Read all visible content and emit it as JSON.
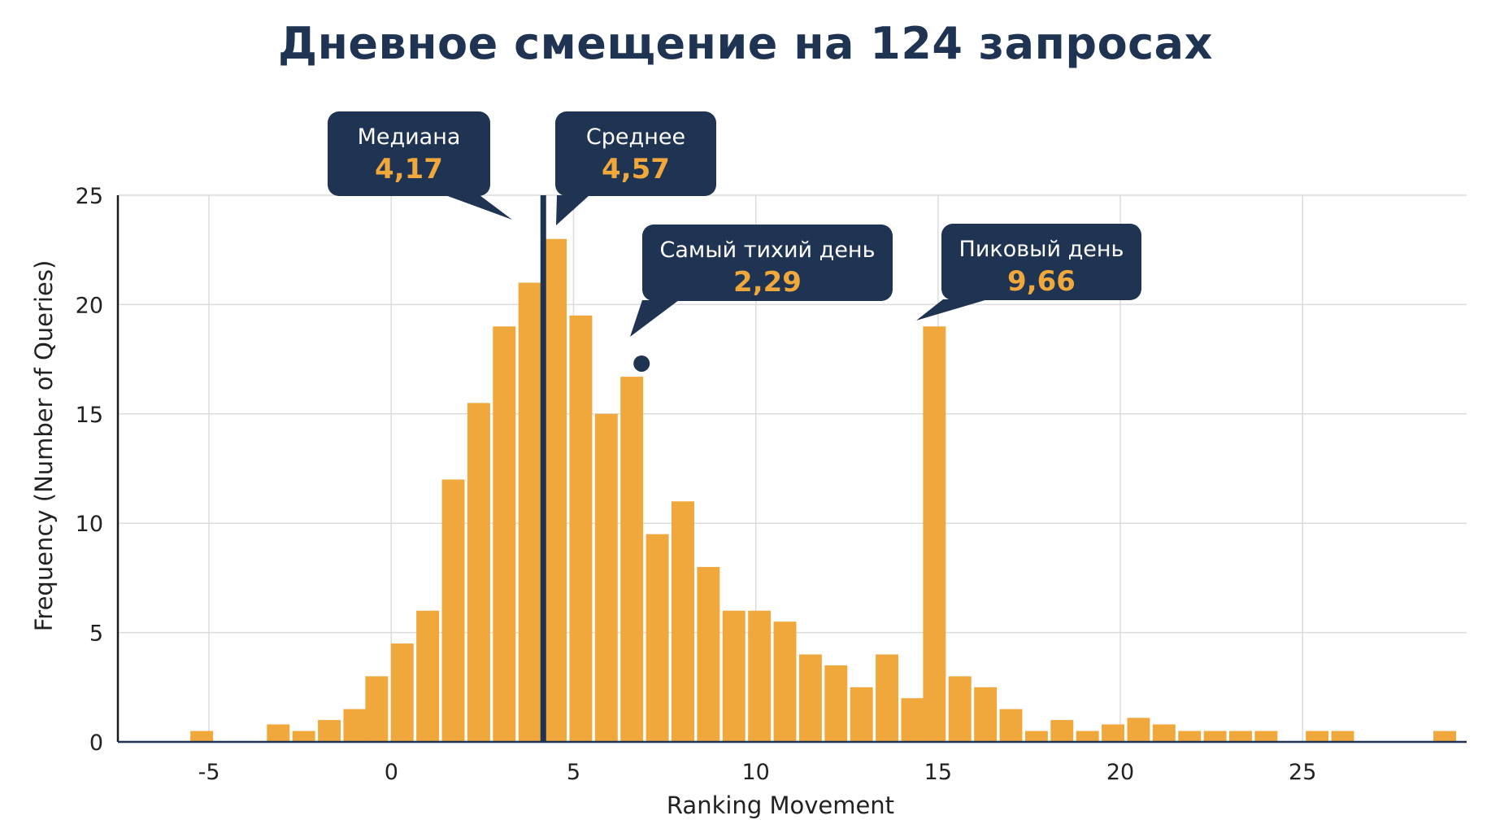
{
  "chart_data": {
    "type": "bar",
    "title": "Дневное смещение на 124 запросах",
    "xlabel": "Ranking Movement",
    "ylabel": "Frequency (Number of Queries)",
    "xlim": [
      -7.5,
      29.5
    ],
    "ylim": [
      0,
      25
    ],
    "x_ticks": [
      -5,
      0,
      5,
      10,
      15,
      20,
      25
    ],
    "x_tick_labels": [
      "-5",
      "0",
      "5",
      "10",
      "15",
      "20",
      "25"
    ],
    "y_ticks": [
      0,
      5,
      10,
      15,
      20,
      25
    ],
    "y_tick_labels": [
      "0",
      "5",
      "10",
      "15",
      "20",
      "25"
    ],
    "grid": true,
    "bar_color": "#f0a73b",
    "bin_width": 0.69,
    "bins": [
      {
        "x": -5.2,
        "value": 0.5
      },
      {
        "x": -3.1,
        "value": 0.8
      },
      {
        "x": -2.4,
        "value": 0.5
      },
      {
        "x": -1.7,
        "value": 1.0
      },
      {
        "x": -1.0,
        "value": 1.5
      },
      {
        "x": -0.4,
        "value": 3.0
      },
      {
        "x": 0.3,
        "value": 4.5
      },
      {
        "x": 1.0,
        "value": 6.0
      },
      {
        "x": 1.7,
        "value": 12.0
      },
      {
        "x": 2.4,
        "value": 15.5
      },
      {
        "x": 3.1,
        "value": 19.0
      },
      {
        "x": 3.8,
        "value": 21.0
      },
      {
        "x": 4.5,
        "value": 23.0
      },
      {
        "x": 5.2,
        "value": 19.5
      },
      {
        "x": 5.9,
        "value": 15.0
      },
      {
        "x": 6.6,
        "value": 16.7
      },
      {
        "x": 7.3,
        "value": 9.5
      },
      {
        "x": 8.0,
        "value": 11.0
      },
      {
        "x": 8.7,
        "value": 8.0
      },
      {
        "x": 9.4,
        "value": 6.0
      },
      {
        "x": 10.1,
        "value": 6.0
      },
      {
        "x": 10.8,
        "value": 5.5
      },
      {
        "x": 11.5,
        "value": 4.0
      },
      {
        "x": 12.2,
        "value": 3.5
      },
      {
        "x": 12.9,
        "value": 2.5
      },
      {
        "x": 13.6,
        "value": 4.0
      },
      {
        "x": 14.3,
        "value": 2.0
      },
      {
        "x": 14.9,
        "value": 19.0
      },
      {
        "x": 15.6,
        "value": 3.0
      },
      {
        "x": 16.3,
        "value": 2.5
      },
      {
        "x": 17.0,
        "value": 1.5
      },
      {
        "x": 17.7,
        "value": 0.5
      },
      {
        "x": 18.4,
        "value": 1.0
      },
      {
        "x": 19.1,
        "value": 0.5
      },
      {
        "x": 19.8,
        "value": 0.8
      },
      {
        "x": 20.5,
        "value": 1.1
      },
      {
        "x": 21.2,
        "value": 0.8
      },
      {
        "x": 21.9,
        "value": 0.5
      },
      {
        "x": 22.6,
        "value": 0.5
      },
      {
        "x": 23.3,
        "value": 0.5
      },
      {
        "x": 24.0,
        "value": 0.5
      },
      {
        "x": 25.4,
        "value": 0.5
      },
      {
        "x": 26.1,
        "value": 0.5
      },
      {
        "x": 28.9,
        "value": 0.5
      }
    ],
    "median_line": {
      "x": 4.17,
      "color": "#1f3352"
    },
    "marker_point": {
      "x": 6.6,
      "y": 17.3,
      "color": "#1f3352"
    },
    "annotations": [
      {
        "label": "Медиана",
        "value": "4,17"
      },
      {
        "label": "Среднее",
        "value": "4,57"
      },
      {
        "label": "Самый тихий день",
        "value": "2,29"
      },
      {
        "label": "Пиковый день",
        "value": "9,66"
      }
    ],
    "annotation_color": "#1f3352",
    "annotation_value_color": "#f0a73b"
  }
}
